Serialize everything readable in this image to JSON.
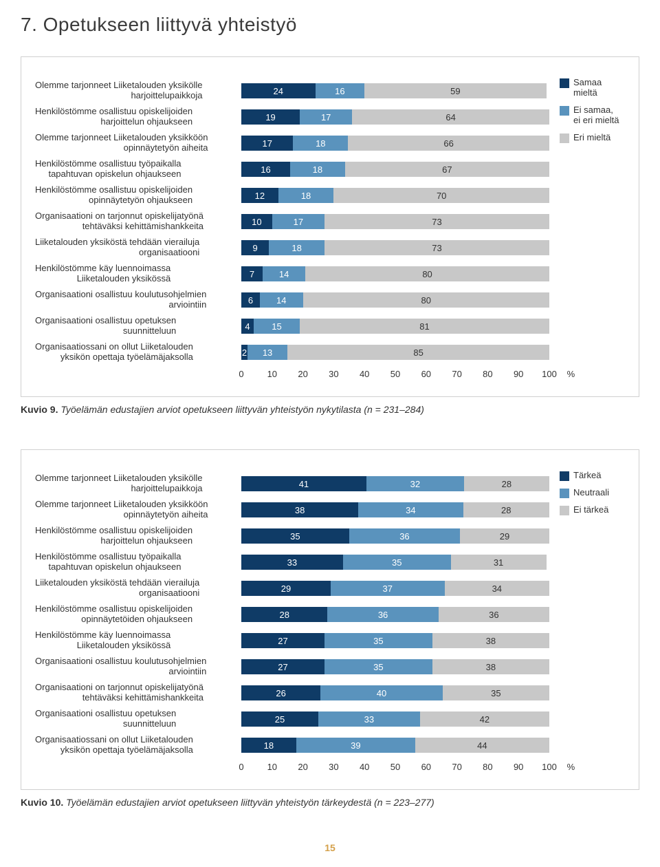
{
  "page_title": "7. Opetukseen liittyvä yhteistyö",
  "chart1": {
    "type": "stacked-bar",
    "xmax": 100,
    "xtick_step": 10,
    "axis_unit": "%",
    "colors": {
      "seg1": "#0f3b66",
      "seg2": "#5a93bd",
      "seg3": "#c8c8c8"
    },
    "legend": [
      {
        "label": "Samaa mieltä",
        "color": "#0f3b66"
      },
      {
        "label": "Ei samaa,\nei eri mieltä",
        "color": "#5a93bd"
      },
      {
        "label": "Eri mieltä",
        "color": "#c8c8c8"
      }
    ],
    "rows": [
      {
        "label": "Olemme tarjonneet Liiketalouden yksikölle\nharjoittelupaikkoja",
        "v": [
          24,
          16,
          59
        ]
      },
      {
        "label": "Henkilöstömme osallistuu opiskelijoiden\nharjoittelun ohjaukseen",
        "v": [
          19,
          17,
          64
        ]
      },
      {
        "label": "Olemme tarjonneet Liiketalouden yksikköön\nopinnäytetyön aiheita",
        "v": [
          17,
          18,
          66
        ]
      },
      {
        "label": "Henkilöstömme osallistuu työpaikalla\ntapahtuvan opiskelun ohjaukseen",
        "v": [
          16,
          18,
          67
        ]
      },
      {
        "label": "Henkilöstömme osallistuu opiskelijoiden\nopinnäytetyön ohjaukseen",
        "v": [
          12,
          18,
          70
        ]
      },
      {
        "label": "Organisaationi on tarjonnut opiskelijatyönä\ntehtäväksi kehittämishankkeita",
        "v": [
          10,
          17,
          73
        ]
      },
      {
        "label": "Liiketalouden yksiköstä tehdään vierailuja\norganisaatiooni",
        "v": [
          9,
          18,
          73
        ]
      },
      {
        "label": "Henkilöstömme käy luennoimassa\nLiiketalouden yksikössä",
        "v": [
          7,
          14,
          80
        ]
      },
      {
        "label": "Organisaationi osallistuu koulutusohjelmien\narviointiin",
        "v": [
          6,
          14,
          80
        ]
      },
      {
        "label": "Organisaationi osallistuu opetuksen\nsuunnitteluun",
        "v": [
          4,
          15,
          81
        ]
      },
      {
        "label": "Organisaatiossani on ollut Liiketalouden\nyksikön opettaja työelämäjaksolla",
        "v": [
          2,
          13,
          85
        ]
      }
    ]
  },
  "caption1_prefix": "Kuvio 9.",
  "caption1_text": " Työelämän edustajien arviot opetukseen liittyvän yhteistyön nykytilasta (n = 231–284)",
  "chart2": {
    "type": "stacked-bar",
    "xmax": 100,
    "xtick_step": 10,
    "axis_unit": "%",
    "colors": {
      "seg1": "#0f3b66",
      "seg2": "#5a93bd",
      "seg3": "#c8c8c8"
    },
    "legend": [
      {
        "label": "Tärkeä",
        "color": "#0f3b66"
      },
      {
        "label": "Neutraali",
        "color": "#5a93bd"
      },
      {
        "label": "Ei tärkeä",
        "color": "#c8c8c8"
      }
    ],
    "rows": [
      {
        "label": "Olemme tarjonneet Liiketalouden yksikölle\nharjoittelupaikkoja",
        "v": [
          41,
          32,
          28
        ]
      },
      {
        "label": "Olemme tarjonneet Liiketalouden yksikköön\nopinnäytetyön aiheita",
        "v": [
          38,
          34,
          28
        ]
      },
      {
        "label": "Henkilöstömme osallistuu opiskelijoiden\nharjoittelun ohjaukseen",
        "v": [
          35,
          36,
          29
        ]
      },
      {
        "label": "Henkilöstömme osallistuu työpaikalla\ntapahtuvan opiskelun ohjaukseen",
        "v": [
          33,
          35,
          31
        ]
      },
      {
        "label": "Liiketalouden yksiköstä tehdään vierailuja\norganisaatiooni",
        "v": [
          29,
          37,
          34
        ]
      },
      {
        "label": "Henkilöstömme osallistuu opiskelijoiden\nopinnäytetöiden ohjaukseen",
        "v": [
          28,
          36,
          36
        ]
      },
      {
        "label": "Henkilöstömme käy luennoimassa\nLiiketalouden yksikössä",
        "v": [
          27,
          35,
          38
        ]
      },
      {
        "label": "Organisaationi osallistuu koulutusohjelmien\narviointiin",
        "v": [
          27,
          35,
          38
        ]
      },
      {
        "label": "Organisaationi on tarjonnut opiskelijatyönä\ntehtäväksi kehittämishankkeita",
        "v": [
          26,
          40,
          35
        ]
      },
      {
        "label": "Organisaationi osallistuu opetuksen\nsuunnitteluun",
        "v": [
          25,
          33,
          42
        ]
      },
      {
        "label": "Organisaatiossani on ollut Liiketalouden\nyksikön opettaja työelämäjaksolla",
        "v": [
          18,
          39,
          44
        ]
      }
    ]
  },
  "caption2_prefix": "Kuvio 10.",
  "caption2_text": " Työelämän edustajien arviot opetukseen liittyvän yhteistyön tärkeydestä (n = 223–277)",
  "page_number": "15"
}
